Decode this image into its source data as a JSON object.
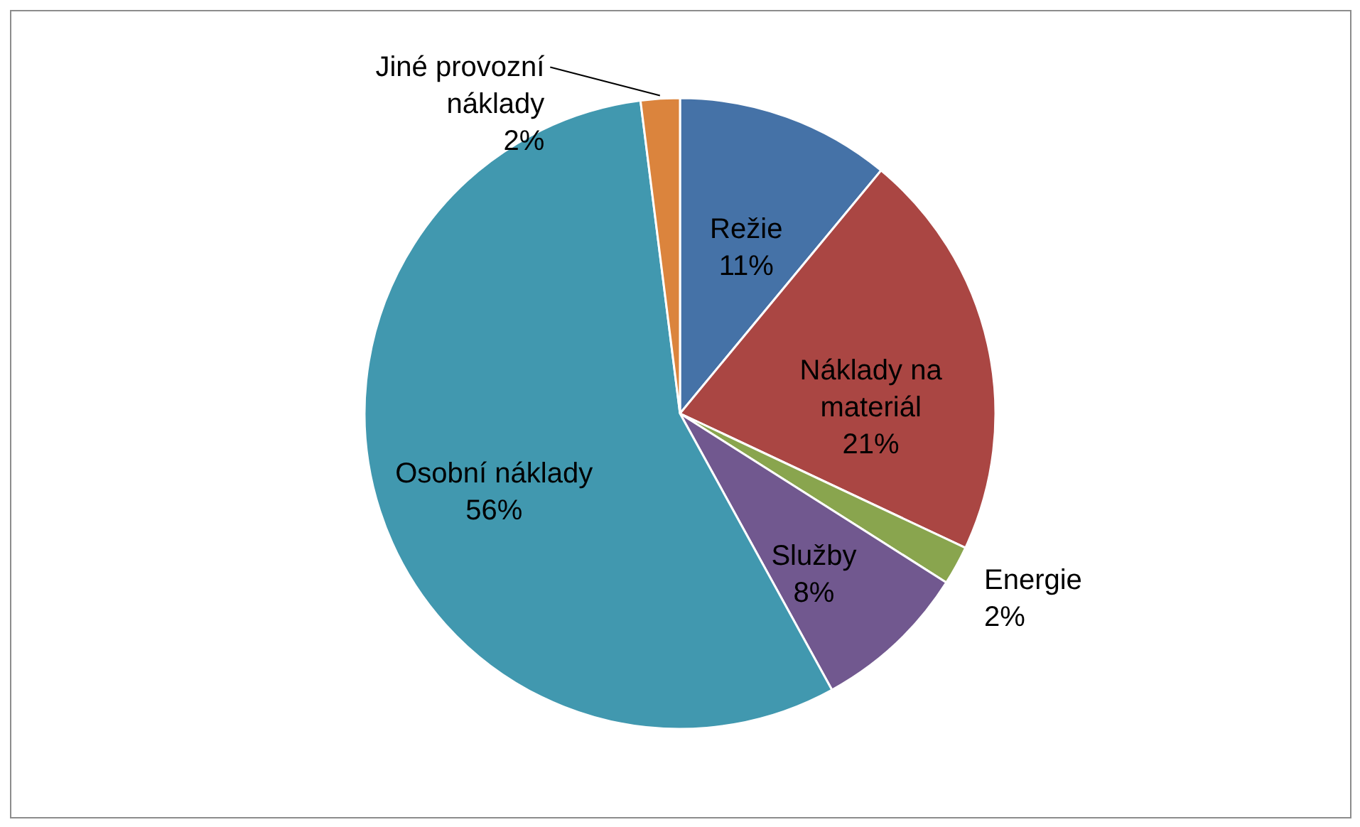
{
  "chart_data": {
    "type": "pie",
    "categories": [
      "Režie",
      "Náklady na materiál",
      "Energie",
      "Služby",
      "Osobní náklady",
      "Jiné provozní náklady"
    ],
    "values": [
      11,
      21,
      2,
      8,
      56,
      2
    ],
    "colors": [
      "#4572a7",
      "#aa4643",
      "#89a54e",
      "#71588f",
      "#4198af",
      "#db843d"
    ],
    "value_labels": [
      "11%",
      "21%",
      "2%",
      "8%",
      "56%",
      "2%"
    ]
  }
}
